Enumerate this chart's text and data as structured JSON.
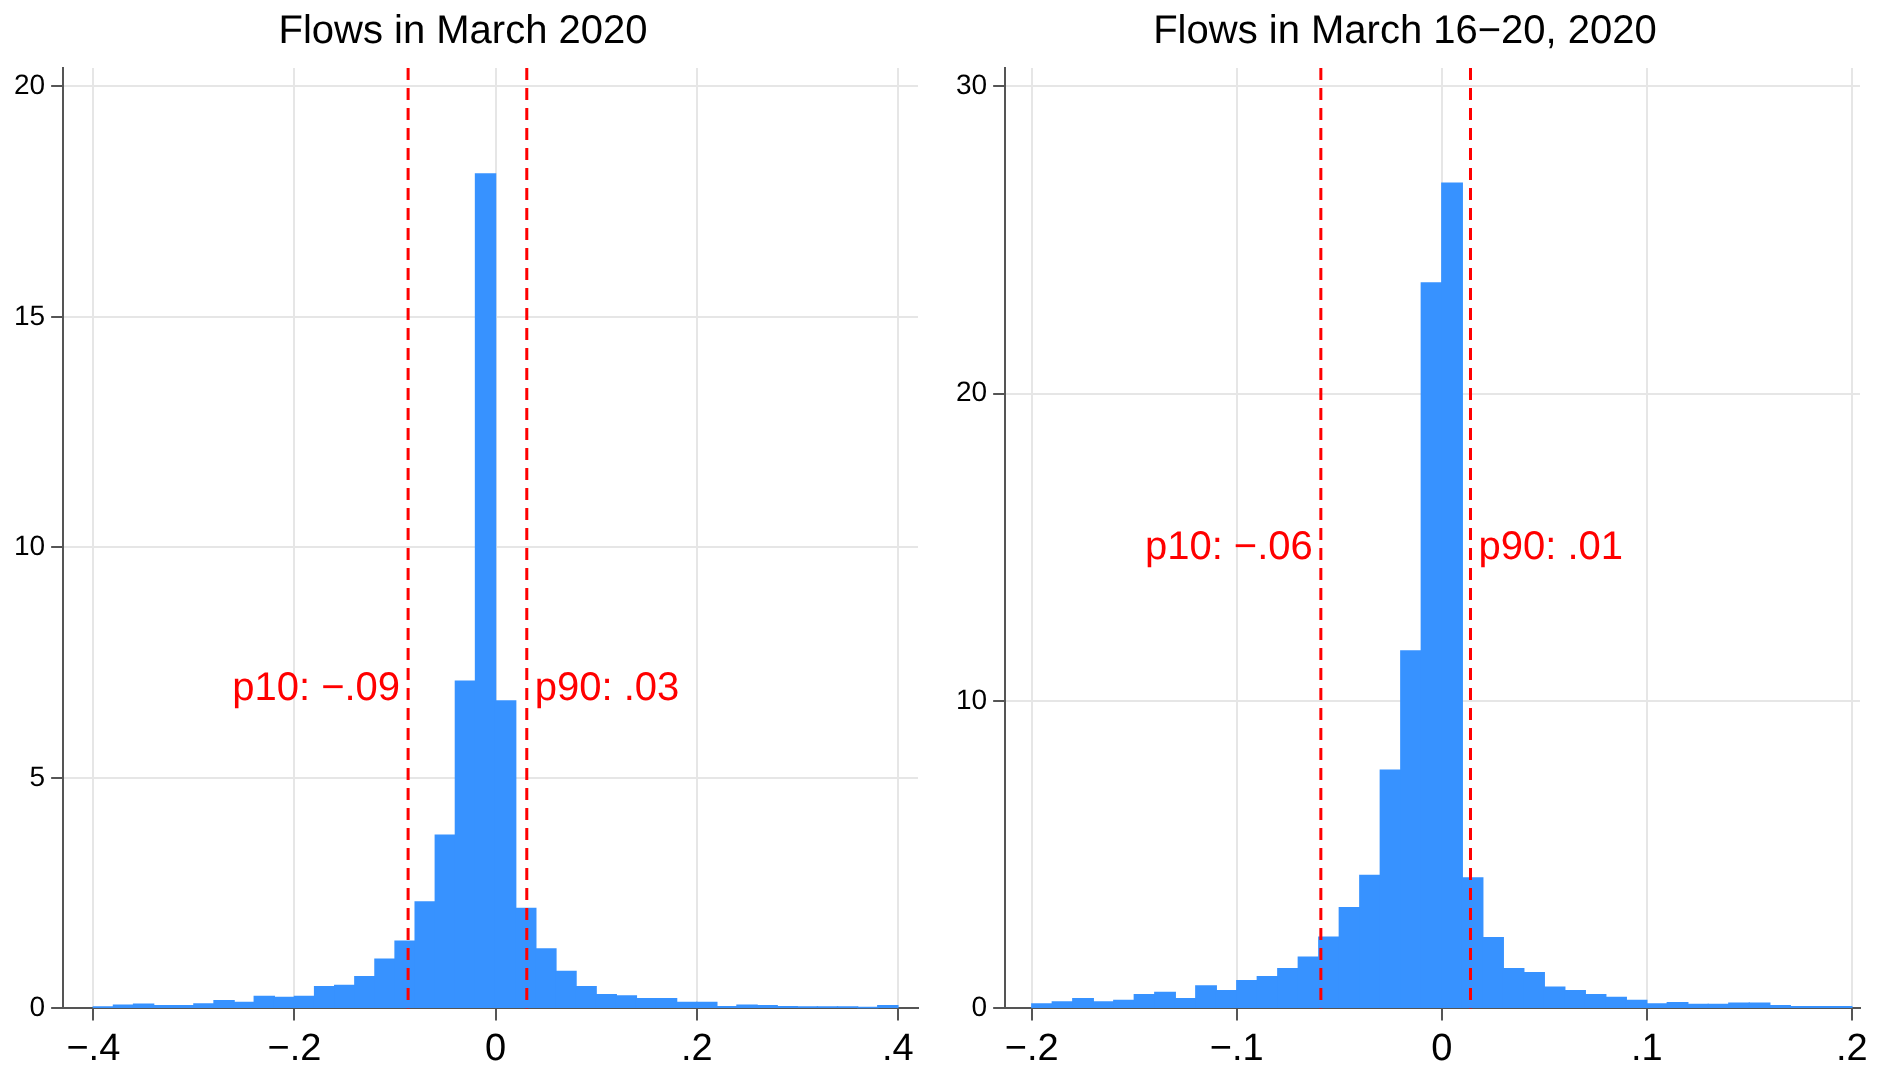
{
  "chart_data": [
    {
      "type": "histogram",
      "title": "Flows in March 2020",
      "color": "#3792ff",
      "bins": [
        -0.4,
        -0.38,
        -0.36,
        -0.34,
        -0.32,
        -0.3,
        -0.28,
        -0.26,
        -0.24,
        -0.22,
        -0.2,
        -0.18,
        -0.16,
        -0.14,
        -0.12,
        -0.1,
        -0.08,
        -0.06,
        -0.04,
        -0.02,
        0,
        0.02,
        0.04,
        0.06,
        0.08,
        0.1,
        0.12,
        0.14,
        0.16,
        0.18,
        0.2,
        0.22,
        0.24,
        0.26,
        0.28,
        0.3,
        0.32,
        0.34,
        0.36,
        0.38,
        0.4
      ],
      "values": [
        0.03,
        0.07,
        0.09,
        0.06,
        0.06,
        0.1,
        0.17,
        0.13,
        0.26,
        0.24,
        0.26,
        0.47,
        0.5,
        0.69,
        1.07,
        1.46,
        2.31,
        3.76,
        7.1,
        18.1,
        6.67,
        2.17,
        1.29,
        0.8,
        0.47,
        0.3,
        0.27,
        0.21,
        0.21,
        0.13,
        0.13,
        0.04,
        0.07,
        0.06,
        0.04,
        0.03,
        0.03,
        0.03,
        0.01,
        0.06
      ],
      "xlim": [
        -0.43,
        0.42
      ],
      "xticks": [
        {
          "value": -0.4,
          "label": "−.4"
        },
        {
          "value": -0.2,
          "label": "−.2"
        },
        0,
        {
          "value": 0.2,
          "label": ".2"
        },
        {
          "value": 0.4,
          "label": ".4"
        }
      ],
      "ylim": [
        0,
        20.4
      ],
      "yticks": [
        0,
        5,
        10,
        15,
        20
      ],
      "grid": true,
      "ref_lines": [
        {
          "axis": "x",
          "value": -0.087,
          "label": "p10: −.09",
          "color": "#ff0000",
          "line_style": "dashed"
        },
        {
          "axis": "x",
          "value": 0.031,
          "label": "p90: .03",
          "color": "#ff0000",
          "line_style": "dashed"
        }
      ]
    },
    {
      "type": "histogram",
      "title": "Flows in March 16−20, 2020",
      "color": "#3792ff",
      "bins": [
        -0.2,
        -0.19,
        -0.18,
        -0.17,
        -0.16,
        -0.15,
        -0.14,
        -0.13,
        -0.12,
        -0.11,
        -0.1,
        -0.09,
        -0.08,
        -0.07,
        -0.06,
        -0.05,
        -0.04,
        -0.03,
        -0.02,
        -0.01,
        0,
        0.01,
        0.02,
        0.03,
        0.04,
        0.05,
        0.06,
        0.07,
        0.08,
        0.09,
        0.1,
        0.11,
        0.12,
        0.13,
        0.14,
        0.15,
        0.16,
        0.17,
        0.18,
        0.19,
        0.2
      ],
      "values": [
        0.15,
        0.21,
        0.32,
        0.21,
        0.26,
        0.45,
        0.52,
        0.32,
        0.73,
        0.58,
        0.9,
        1.03,
        1.29,
        1.67,
        2.32,
        3.28,
        4.33,
        7.75,
        11.63,
        23.61,
        26.85,
        4.25,
        2.3,
        1.29,
        1.16,
        0.69,
        0.58,
        0.45,
        0.36,
        0.26,
        0.15,
        0.19,
        0.13,
        0.13,
        0.17,
        0.17,
        0.09,
        0.06,
        0.06,
        0.06
      ],
      "xlim": [
        -0.213,
        0.204
      ],
      "xticks": [
        {
          "value": -0.2,
          "label": "−.2"
        },
        {
          "value": -0.1,
          "label": "−.1"
        },
        0,
        {
          "value": 0.1,
          "label": ".1"
        },
        {
          "value": 0.2,
          "label": ".2"
        }
      ],
      "ylim": [
        0,
        30.6
      ],
      "yticks": [
        0,
        10,
        20,
        30
      ],
      "grid": true,
      "ref_lines": [
        {
          "axis": "x",
          "value": -0.059,
          "label": "p10: −.06",
          "color": "#ff0000",
          "line_style": "dashed"
        },
        {
          "axis": "x",
          "value": 0.014,
          "label": "p90: .01",
          "color": "#ff0000",
          "line_style": "dashed"
        }
      ]
    }
  ]
}
